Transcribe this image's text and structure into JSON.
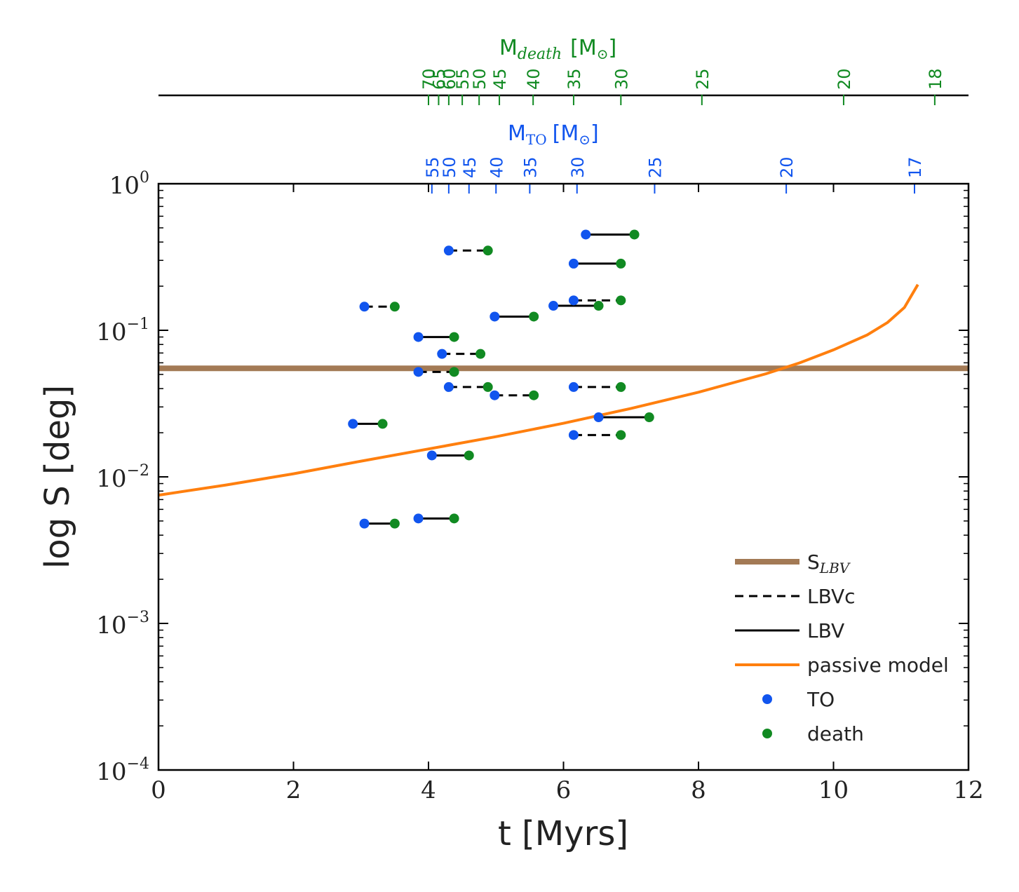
{
  "colors": {
    "to": "#1155ee",
    "death": "#118a22",
    "slbv": "#a37a55",
    "passive": "#ff7f0e",
    "axis": "#000000"
  },
  "chart_data": {
    "type": "scatter",
    "xlabel": "t [Myrs]",
    "ylabel": "log S [deg]",
    "xlim": [
      0,
      12
    ],
    "ylim_log10": [
      -4,
      0
    ],
    "x_ticks": [
      "0",
      "2",
      "4",
      "6",
      "8",
      "10",
      "12"
    ],
    "y_ticks": [
      {
        "base": "10",
        "exp": "0"
      },
      {
        "base": "10",
        "exp": "−1"
      },
      {
        "base": "10",
        "exp": "−2"
      },
      {
        "base": "10",
        "exp": "−3"
      },
      {
        "base": "10",
        "exp": "−4"
      }
    ],
    "top_axis_to": {
      "label_main": "M",
      "label_sub": "TO",
      "label_unit": "[M",
      "label_sun": "⊙",
      "label_close": "]",
      "ticks": [
        {
          "label": "55",
          "t": 4.05
        },
        {
          "label": "50",
          "t": 4.3
        },
        {
          "label": "45",
          "t": 4.6
        },
        {
          "label": "40",
          "t": 5.0
        },
        {
          "label": "35",
          "t": 5.5
        },
        {
          "label": "30",
          "t": 6.2
        },
        {
          "label": "25",
          "t": 7.35
        },
        {
          "label": "20",
          "t": 9.3
        },
        {
          "label": "17",
          "t": 11.2
        }
      ]
    },
    "top_axis_death": {
      "label_main": "M",
      "label_sub": "death",
      "label_unit": "[M",
      "label_sun": "⊙",
      "label_close": "]",
      "ticks": [
        {
          "label": "70",
          "t": 4.0
        },
        {
          "label": "65",
          "t": 4.15
        },
        {
          "label": "60",
          "t": 4.3
        },
        {
          "label": "55",
          "t": 4.5
        },
        {
          "label": "50",
          "t": 4.75
        },
        {
          "label": "45",
          "t": 5.05
        },
        {
          "label": "40",
          "t": 5.55
        },
        {
          "label": "35",
          "t": 6.15
        },
        {
          "label": "30",
          "t": 6.85
        },
        {
          "label": "25",
          "t": 8.05
        },
        {
          "label": "20",
          "t": 10.15
        },
        {
          "label": "18",
          "t": 11.5
        }
      ]
    },
    "s_lbv": 0.055,
    "passive_model": {
      "t": [
        0,
        1,
        2,
        3,
        4,
        5,
        6,
        7,
        8,
        9,
        9.5,
        10,
        10.5,
        10.8,
        11.05,
        11.25
      ],
      "s": [
        0.0075,
        0.0088,
        0.0105,
        0.0128,
        0.0155,
        0.0188,
        0.0232,
        0.0293,
        0.0378,
        0.0505,
        0.06,
        0.0735,
        0.093,
        0.113,
        0.143,
        0.205
      ]
    },
    "segments": [
      {
        "t_to": 3.05,
        "t_death": 3.5,
        "s": 0.145,
        "style": "LBVc"
      },
      {
        "t_to": 4.3,
        "t_death": 4.88,
        "s": 0.35,
        "style": "LBVc"
      },
      {
        "t_to": 3.85,
        "t_death": 4.38,
        "s": 0.09,
        "style": "LBV"
      },
      {
        "t_to": 4.2,
        "t_death": 4.77,
        "s": 0.069,
        "style": "LBVc"
      },
      {
        "t_to": 3.85,
        "t_death": 4.38,
        "s": 0.052,
        "style": "LBVc"
      },
      {
        "t_to": 4.3,
        "t_death": 4.88,
        "s": 0.041,
        "style": "LBVc"
      },
      {
        "t_to": 4.98,
        "t_death": 5.56,
        "s": 0.036,
        "style": "LBVc"
      },
      {
        "t_to": 4.98,
        "t_death": 5.56,
        "s": 0.124,
        "style": "LBV"
      },
      {
        "t_to": 2.88,
        "t_death": 3.32,
        "s": 0.023,
        "style": "LBV"
      },
      {
        "t_to": 4.05,
        "t_death": 4.6,
        "s": 0.014,
        "style": "LBV"
      },
      {
        "t_to": 3.05,
        "t_death": 3.5,
        "s": 0.0048,
        "style": "LBV"
      },
      {
        "t_to": 3.85,
        "t_death": 4.38,
        "s": 0.0052,
        "style": "LBV"
      },
      {
        "t_to": 6.33,
        "t_death": 7.05,
        "s": 0.45,
        "style": "LBV"
      },
      {
        "t_to": 6.15,
        "t_death": 6.85,
        "s": 0.285,
        "style": "LBV"
      },
      {
        "t_to": 6.15,
        "t_death": 6.85,
        "s": 0.16,
        "style": "LBVc"
      },
      {
        "t_to": 5.85,
        "t_death": 6.52,
        "s": 0.147,
        "style": "LBV"
      },
      {
        "t_to": 6.15,
        "t_death": 6.85,
        "s": 0.041,
        "style": "LBVc"
      },
      {
        "t_to": 6.52,
        "t_death": 7.27,
        "s": 0.0255,
        "style": "LBV"
      },
      {
        "t_to": 6.15,
        "t_death": 6.85,
        "s": 0.0193,
        "style": "LBVc"
      }
    ],
    "legend": {
      "position": "lower-right",
      "entries": [
        {
          "key": "slbv",
          "label": "S",
          "sub": "LBV"
        },
        {
          "key": "lbvc",
          "label": "LBVc"
        },
        {
          "key": "lbv",
          "label": "LBV"
        },
        {
          "key": "passive",
          "label": "passive model"
        },
        {
          "key": "to",
          "label": "TO"
        },
        {
          "key": "death",
          "label": "death"
        }
      ]
    }
  }
}
